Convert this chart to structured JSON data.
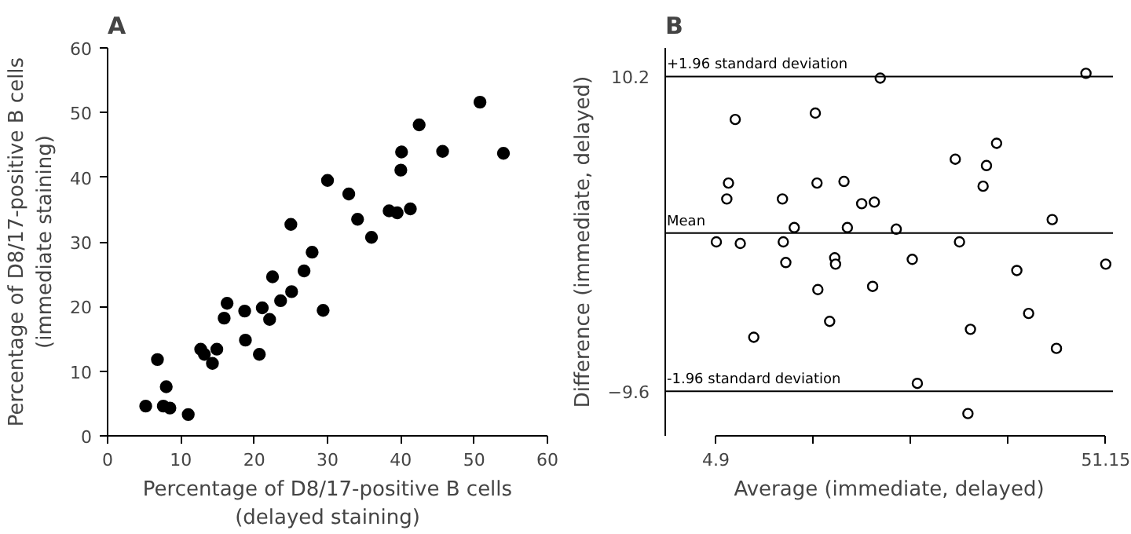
{
  "chart_data": [
    {
      "type": "scatter",
      "title": "A",
      "xlabel": "Percentage of D8/17-positive B cells\n(delayed staining)",
      "ylabel": "Percentage of D8/17-positive B cells\n(immediate staining)",
      "xlim": [
        0,
        60
      ],
      "ylim": [
        0,
        60
      ],
      "xticks": [
        0,
        10,
        20,
        30,
        40,
        50,
        60
      ],
      "yticks": [
        0,
        10,
        20,
        30,
        40,
        50,
        60
      ],
      "grid": false,
      "marker": "circle",
      "series": [
        {
          "color": "#000000",
          "x": [
            5.2,
            6.8,
            8.0,
            7.6,
            8.5,
            11.0,
            12.7,
            13.2,
            14.3,
            14.9,
            15.9,
            16.3,
            18.7,
            18.8,
            20.7,
            21.1,
            22.1,
            22.5,
            23.6,
            25.1,
            25.0,
            26.8,
            27.9,
            29.4,
            30.0,
            32.9,
            34.1,
            36.0,
            38.4,
            39.5,
            40.0,
            40.1,
            41.3,
            42.5,
            45.7,
            50.8,
            54.0
          ],
          "values": [
            4.6,
            11.8,
            7.6,
            4.6,
            4.3,
            3.3,
            13.4,
            12.6,
            11.2,
            13.4,
            18.2,
            20.5,
            19.3,
            14.8,
            12.6,
            19.8,
            18.0,
            24.6,
            20.9,
            22.3,
            32.7,
            25.5,
            28.4,
            19.4,
            39.5,
            37.4,
            33.5,
            30.7,
            34.8,
            34.5,
            41.1,
            43.9,
            35.1,
            48.1,
            44.0,
            51.6,
            43.7
          ]
        }
      ]
    },
    {
      "type": "scatter",
      "title": "B",
      "xlabel": "Average (immediate, delayed)",
      "ylabel": "Difference (immediate, delayed)",
      "xlim": [
        -1.1,
        52
      ],
      "ylim": [
        -12.4,
        12
      ],
      "xticks": [
        {
          "value": 4.9,
          "label": "4.9"
        },
        {
          "value": 16.46,
          "label": null
        },
        {
          "value": 28.03,
          "label": null
        },
        {
          "value": 39.59,
          "label": null
        },
        {
          "value": 51.15,
          "label": "51.15"
        }
      ],
      "yticks": [
        10.2,
        -9.6
      ],
      "grid": false,
      "marker": "circle",
      "ref_lines": [
        {
          "axis": "y",
          "value": 10.2,
          "label": "+1.96 standard deviation",
          "color": "#000000"
        },
        {
          "axis": "y",
          "value": 0.36,
          "label": "Mean",
          "color": "#000000"
        },
        {
          "axis": "y",
          "value": -9.6,
          "label": "-1.96 standard deviation",
          "color": "#000000"
        }
      ],
      "series": [
        {
          "color": "#000000",
          "x": [
            24.4,
            48.8,
            7.2,
            16.7,
            38.2,
            33.3,
            37.0,
            6.4,
            16.9,
            20.1,
            6.2,
            12.8,
            36.6,
            22.2,
            23.7,
            44.8,
            14.2,
            20.5,
            26.3,
            4.96,
            7.8,
            12.9,
            33.8,
            13.2,
            19.0,
            19.1,
            28.2,
            51.15,
            40.6,
            17.0,
            23.5,
            18.4,
            9.4,
            35.1,
            42.0,
            45.3,
            28.8,
            34.8
          ],
          "values": [
            10.1,
            10.4,
            7.5,
            7.9,
            6.0,
            5.0,
            4.6,
            3.5,
            3.5,
            3.6,
            2.5,
            2.5,
            3.3,
            2.2,
            2.3,
            1.2,
            0.7,
            0.7,
            0.6,
            -0.2,
            -0.3,
            -0.2,
            -0.2,
            -1.5,
            -1.2,
            -1.6,
            -1.3,
            -1.6,
            -2.0,
            -3.2,
            -3.0,
            -5.2,
            -6.2,
            -5.7,
            -4.7,
            -6.9,
            -9.1,
            -11.0
          ]
        }
      ]
    }
  ]
}
